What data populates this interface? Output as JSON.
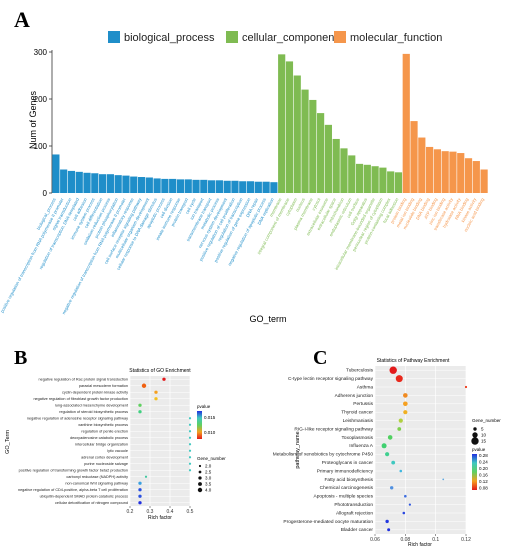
{
  "panels": {
    "a": "A",
    "b": "B",
    "c": "C"
  },
  "chart_data": [
    {
      "panel": "A",
      "type": "bar",
      "xlabel": "GO_term",
      "ylabel": "Num of Genes",
      "ylim": [
        0,
        300
      ],
      "yticks": [
        0,
        100,
        200,
        300
      ],
      "legend_placement": "top",
      "grid": false,
      "groups": [
        {
          "name": "biological_process",
          "color": "#1f8ec9",
          "categories": [
            "biological_process",
            "positive regulation of transcription from RNA polymerase II promoter",
            "signal transduction",
            "regulation of transcription, DNA-templated",
            "cell adhesion",
            "immune system process",
            "cell differentiation",
            "oxidation-reduction process",
            "protein phosphorylation",
            "negative regulation of transcription from RNA polymerase II promoter",
            "inflammatory response",
            "cell surface receptor signaling pathway",
            "multicellular organism development",
            "cellular response to DNA damage stimulus",
            "apoptotic process",
            "cell division",
            "innate immune response",
            "protein transport",
            "cell cycle",
            "ion transport",
            "transmembrane transport",
            "metabolic process",
            "nervous system development",
            "positive regulation of cell proliferation",
            "regulation of transcription",
            "positive regulation of gene expression",
            "DNA repair",
            "negative regulation of apoptotic process",
            "DNA replication"
          ],
          "values": [
            82,
            50,
            47,
            45,
            43,
            42,
            40,
            40,
            38,
            37,
            35,
            34,
            33,
            31,
            30,
            30,
            29,
            29,
            28,
            28,
            27,
            27,
            26,
            26,
            25,
            25,
            24,
            24,
            23
          ]
        },
        {
          "name": "cellular_component",
          "color": "#7fbb52",
          "categories": [
            "membrane",
            "integral component of membrane",
            "cytoplasm",
            "nucleus",
            "plasma membrane",
            "cytosol",
            "extracellular exosome",
            "extracellular space",
            "mitochondrion",
            "endoplasmic reticulum",
            "cell surface",
            "Golgi apparatus",
            "intracellular membrane-bounded organelle",
            "perinuclear region of cytoplasm",
            "protein-containing complex",
            "focal adhesion"
          ],
          "values": [
            295,
            280,
            250,
            220,
            198,
            170,
            145,
            115,
            95,
            80,
            62,
            60,
            57,
            54,
            46,
            44
          ]
        },
        {
          "name": "molecular_function",
          "color": "#f5964b",
          "categories": [
            "protein binding",
            "metal ion binding",
            "nucleotide binding",
            "DNA binding",
            "ATP binding",
            "zinc ion binding",
            "transferase activity",
            "hydrolase activity",
            "RNA binding",
            "kinase activity",
            "nucleic acid binding"
          ],
          "values": [
            296,
            153,
            118,
            98,
            93,
            89,
            88,
            85,
            74,
            68,
            50
          ]
        }
      ]
    },
    {
      "panel": "B",
      "type": "scatter",
      "title": "Statistics of GO Enrichment",
      "xlabel": "Rich factor",
      "ylabel": "GO_Term",
      "xlim": [
        0.2,
        0.5
      ],
      "xticks": [
        0.2,
        0.3,
        0.4,
        0.5
      ],
      "grid": true,
      "legend_placement": "right",
      "color_legend": {
        "title": "pvalue",
        "ticks": [
          0.015,
          0.01
        ],
        "tick_labels": [
          "0.015",
          "0.010"
        ]
      },
      "size_legend": {
        "title": "Gene_number",
        "ticks": [
          2.0,
          2.5,
          3.0,
          3.5,
          4.0
        ],
        "tick_labels": [
          "2.0",
          "2.5",
          "3.0",
          "3.5",
          "4.0"
        ]
      },
      "terms": [
        "negative regulation of Rac protein signal transduction",
        "paraxial mesoderm formation",
        "cyclin-dependent protein kinase activity",
        "negative regulation of fibroblast growth factor production",
        "lung-associated mesenchyme development",
        "regulation of steroid biosynthetic process",
        "negative regulation of adenosine receptor signaling pathway",
        "xanthine biosynthetic process",
        "regulation of penile erection",
        "deoxyadenosine catabolic process",
        "intercellular bridge organization",
        "lytic vacuole",
        "adrenal cortex development",
        "purine nucleoside salvage",
        "positive regulation of transforming growth factor beta2 production",
        "carbonyl reductase (NADPH) activity",
        "non-canonical Wnt signaling pathway",
        "negative regulation of CD4-positive, alpha-beta T cell proliferation",
        "ubiquitin-dependent SMAD protein catabolic process",
        "cellular detoxification of nitrogen compound"
      ],
      "points": [
        {
          "x": 0.37,
          "gene_number": 3,
          "pvalue": 0.005,
          "color": "#e31a1c"
        },
        {
          "x": 0.27,
          "gene_number": 4,
          "pvalue": 0.008,
          "color": "#f06010"
        },
        {
          "x": 0.33,
          "gene_number": 3,
          "pvalue": 0.01,
          "color": "#f5a020"
        },
        {
          "x": 0.33,
          "gene_number": 3,
          "pvalue": 0.011,
          "color": "#f5c020"
        },
        {
          "x": 0.25,
          "gene_number": 3,
          "pvalue": 0.015,
          "color": "#60d060"
        },
        {
          "x": 0.25,
          "gene_number": 3,
          "pvalue": 0.016,
          "color": "#40d080"
        },
        {
          "x": 0.5,
          "gene_number": 2,
          "pvalue": 0.017,
          "color": "#40c8c0"
        },
        {
          "x": 0.5,
          "gene_number": 2,
          "pvalue": 0.017,
          "color": "#40c8c0"
        },
        {
          "x": 0.5,
          "gene_number": 2,
          "pvalue": 0.017,
          "color": "#40c8c0"
        },
        {
          "x": 0.5,
          "gene_number": 2,
          "pvalue": 0.017,
          "color": "#40c8c0"
        },
        {
          "x": 0.5,
          "gene_number": 2,
          "pvalue": 0.017,
          "color": "#40c8c0"
        },
        {
          "x": 0.5,
          "gene_number": 2,
          "pvalue": 0.017,
          "color": "#40c8c0"
        },
        {
          "x": 0.5,
          "gene_number": 2,
          "pvalue": 0.017,
          "color": "#40c8c0"
        },
        {
          "x": 0.5,
          "gene_number": 2,
          "pvalue": 0.017,
          "color": "#40c8c0"
        },
        {
          "x": 0.5,
          "gene_number": 2,
          "pvalue": 0.017,
          "color": "#40c8c0"
        },
        {
          "x": 0.28,
          "gene_number": 2,
          "pvalue": 0.017,
          "color": "#40c8a0"
        },
        {
          "x": 0.25,
          "gene_number": 3,
          "pvalue": 0.018,
          "color": "#3aa0e0"
        },
        {
          "x": 0.25,
          "gene_number": 3,
          "pvalue": 0.019,
          "color": "#2a50e0"
        },
        {
          "x": 0.25,
          "gene_number": 3,
          "pvalue": 0.019,
          "color": "#2a50e0"
        },
        {
          "x": 0.25,
          "gene_number": 3,
          "pvalue": 0.02,
          "color": "#2030e0"
        }
      ]
    },
    {
      "panel": "C",
      "type": "scatter",
      "title": "Statistics of Pathway Enrichment",
      "xlabel": "Rich factor",
      "ylabel": "pathway_name",
      "xlim": [
        0.06,
        0.12
      ],
      "xticks": [
        0.06,
        0.08,
        0.1,
        0.12
      ],
      "grid": true,
      "legend_placement": "right",
      "size_legend": {
        "title": "Gene_number",
        "ticks": [
          5,
          10,
          15
        ],
        "tick_labels": [
          "5",
          "10",
          "15"
        ]
      },
      "color_legend": {
        "title": "pvalue",
        "ticks": [
          0.28,
          0.24,
          0.2,
          0.16,
          0.12,
          0.08
        ],
        "tick_labels": [
          "0.28",
          "0.24",
          "0.20",
          "0.16",
          "0.12",
          "0.08"
        ]
      },
      "terms": [
        "Tuberculosis",
        "C-type lectin receptor signaling pathway",
        "Asthma",
        "Adherens junction",
        "Pertussis",
        "Thyroid cancer",
        "Leishmaniasis",
        "RIG-I-like receptor signaling pathway",
        "Toxoplasmosis",
        "Influenza A",
        "Metabolism of xenobiotics by cytochrome P450",
        "Proteoglycans in cancer",
        "Primary immunodeficiency",
        "Fatty acid biosynthesis",
        "Chemical carcinogenesis",
        "Apoptosis - multiple species",
        "Phototransduction",
        "Allograft rejection",
        "Progesterone-mediated oocyte maturation",
        "Bladder cancer"
      ],
      "points": [
        {
          "x": 0.072,
          "gene_number": 15,
          "pvalue": 0.06,
          "color": "#e31a1c"
        },
        {
          "x": 0.076,
          "gene_number": 14,
          "pvalue": 0.07,
          "color": "#e8281c"
        },
        {
          "x": 0.12,
          "gene_number": 2,
          "pvalue": 0.08,
          "color": "#ee3a1a"
        },
        {
          "x": 0.08,
          "gene_number": 8,
          "pvalue": 0.1,
          "color": "#f08a20"
        },
        {
          "x": 0.08,
          "gene_number": 8,
          "pvalue": 0.1,
          "color": "#f5a020"
        },
        {
          "x": 0.08,
          "gene_number": 7,
          "pvalue": 0.11,
          "color": "#f0b020"
        },
        {
          "x": 0.077,
          "gene_number": 7,
          "pvalue": 0.14,
          "color": "#b0d040"
        },
        {
          "x": 0.076,
          "gene_number": 6,
          "pvalue": 0.16,
          "color": "#80d050"
        },
        {
          "x": 0.07,
          "gene_number": 8,
          "pvalue": 0.17,
          "color": "#50d060"
        },
        {
          "x": 0.066,
          "gene_number": 9,
          "pvalue": 0.18,
          "color": "#40d070"
        },
        {
          "x": 0.068,
          "gene_number": 7,
          "pvalue": 0.19,
          "color": "#40d090"
        },
        {
          "x": 0.072,
          "gene_number": 6,
          "pvalue": 0.2,
          "color": "#40c8c0"
        },
        {
          "x": 0.077,
          "gene_number": 3,
          "pvalue": 0.21,
          "color": "#40b8e0"
        },
        {
          "x": 0.105,
          "gene_number": 1,
          "pvalue": 0.22,
          "color": "#60a8e0"
        },
        {
          "x": 0.071,
          "gene_number": 5,
          "pvalue": 0.23,
          "color": "#5090e0"
        },
        {
          "x": 0.08,
          "gene_number": 3,
          "pvalue": 0.24,
          "color": "#4070e0"
        },
        {
          "x": 0.083,
          "gene_number": 2,
          "pvalue": 0.25,
          "color": "#3058e0"
        },
        {
          "x": 0.079,
          "gene_number": 3,
          "pvalue": 0.26,
          "color": "#2a48e0"
        },
        {
          "x": 0.068,
          "gene_number": 5,
          "pvalue": 0.27,
          "color": "#2438e0"
        },
        {
          "x": 0.069,
          "gene_number": 4,
          "pvalue": 0.28,
          "color": "#2030e0"
        }
      ]
    }
  ]
}
